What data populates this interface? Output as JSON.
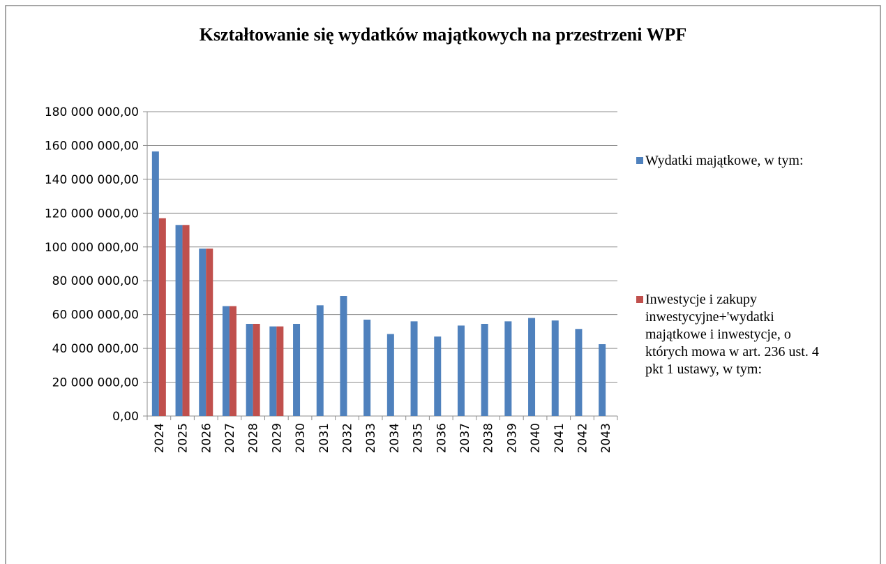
{
  "chart_data": {
    "type": "bar",
    "title": "Kształtowanie się wydatków majątkowych na przestrzeni WPF",
    "categories": [
      "2024",
      "2025",
      "2026",
      "2027",
      "2028",
      "2029",
      "2030",
      "2031",
      "2032",
      "2033",
      "2034",
      "2035",
      "2036",
      "2037",
      "2038",
      "2039",
      "2040",
      "2041",
      "2042",
      "2043"
    ],
    "series": [
      {
        "name": "Wydatki majątkowe, w tym:",
        "color": "#4f81bd",
        "values": [
          156500000,
          113000000,
          99000000,
          65000000,
          54500000,
          53000000,
          54500000,
          65500000,
          71000000,
          57000000,
          48500000,
          56000000,
          47000000,
          53500000,
          54500000,
          56000000,
          58000000,
          56500000,
          51500000,
          42500000
        ]
      },
      {
        "name": "Inwestycje i zakupy inwestycyjne+'wydatki majątkowe i  inwestycje, o których mowa w art. 236 ust. 4 pkt 1 ustawy, w tym:",
        "color": "#c0504d",
        "values": [
          117000000,
          113000000,
          99000000,
          65000000,
          54500000,
          53000000,
          null,
          null,
          null,
          null,
          null,
          null,
          null,
          null,
          null,
          null,
          null,
          null,
          null,
          null
        ]
      }
    ],
    "ylim": [
      0,
      180000000
    ],
    "yticks": [
      {
        "value": 0,
        "label": "0,00"
      },
      {
        "value": 20000000,
        "label": "20 000 000,00"
      },
      {
        "value": 40000000,
        "label": "40 000 000,00"
      },
      {
        "value": 60000000,
        "label": "60 000 000,00"
      },
      {
        "value": 80000000,
        "label": "80 000 000,00"
      },
      {
        "value": 100000000,
        "label": "100 000 000,00"
      },
      {
        "value": 120000000,
        "label": "120 000 000,00"
      },
      {
        "value": 140000000,
        "label": "140 000 000,00"
      },
      {
        "value": 160000000,
        "label": "160 000 000,00"
      },
      {
        "value": 180000000,
        "label": "180 000 000,00"
      }
    ],
    "grid": true
  }
}
